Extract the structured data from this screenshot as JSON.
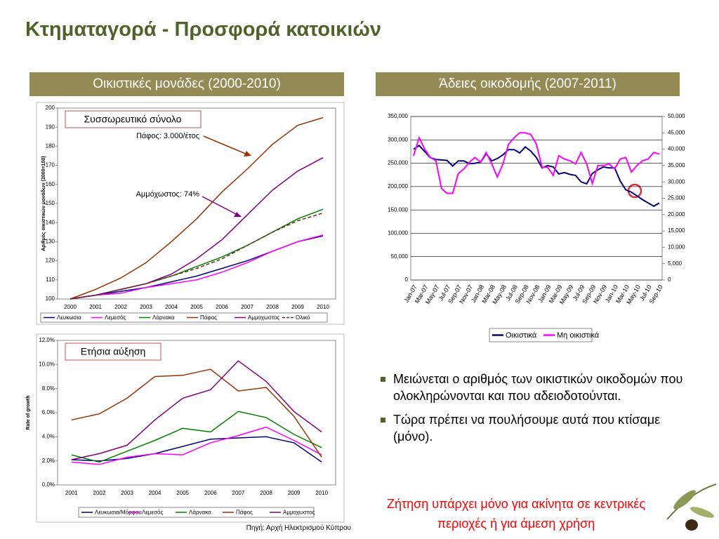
{
  "title": "Κτηματαγορά - Προσφορά κατοικιών",
  "left_header": "Οικιστικές μονάδες (2000-2010)",
  "right_header": "Άδειες οικοδομής (2007-2011)",
  "bullets": [
    "Μειώνεται ο αριθμός των οικιστικών οικοδομών που ολοκληρώνονται και που αδειοδοτούνται.",
    "Τώρα πρέπει να πουλήσουμε αυτά που κτίσαμε (μόνο)."
  ],
  "note": "Ζήτηση υπάρχει μόνο για ακίνητα σε κεντρικές περιοχές ή για άμεση χρήση",
  "source": "Πηγή: Αρχή Ηλεκτρισμού Κύπρου",
  "chart_data": [
    {
      "type": "line",
      "box_label": "Συσσωρευτικό σύνολο",
      "annotations": [
        "Πάφος: 3.000/έτος",
        "Αμμόχωστος: 74%"
      ],
      "y_label": "Αριθμός οικιστικών μονάδων (2000=100)",
      "categories": [
        "2000",
        "2001",
        "2002",
        "2003",
        "2004",
        "2005",
        "2006",
        "2007",
        "2008",
        "2009",
        "2010"
      ],
      "ylim": [
        100,
        200
      ],
      "yticks": [
        100,
        110,
        120,
        130,
        140,
        150,
        160,
        170,
        180,
        190,
        200
      ],
      "grid": false,
      "series": [
        {
          "name": "Λευκωσια",
          "color": "#000080",
          "values": [
            100,
            102,
            104,
            106,
            109,
            112,
            116,
            120,
            125,
            130,
            133
          ]
        },
        {
          "name": "Λεμεσός",
          "color": "#ff00ff",
          "values": [
            100,
            102,
            103,
            106,
            108,
            110,
            114,
            119,
            125,
            130,
            133.5
          ]
        },
        {
          "name": "Λάρνακα",
          "color": "#008000",
          "values": [
            100,
            102,
            105,
            108,
            112,
            117,
            122,
            128,
            135,
            142,
            147
          ]
        },
        {
          "name": "Πάφος",
          "color": "#993300",
          "values": [
            100,
            105,
            111,
            119,
            130,
            142,
            156,
            168,
            181,
            191,
            195
          ]
        },
        {
          "name": "Αμμοχωστος",
          "color": "#800080",
          "values": [
            100,
            102,
            105,
            108,
            113,
            121,
            131,
            144,
            157,
            167,
            174
          ]
        },
        {
          "name": "Ολικό",
          "color": "#6b2d1a",
          "dash": true,
          "values": [
            100,
            102,
            105,
            108,
            112,
            116,
            121,
            128,
            135,
            141,
            145
          ]
        }
      ]
    },
    {
      "type": "line",
      "categories": [
        "Jan-07",
        null,
        "Mar-07",
        null,
        "May-07",
        null,
        "Jul-07",
        null,
        "Sep-07",
        null,
        "Nov-07",
        null,
        "Jan-08",
        null,
        "Mar-08",
        null,
        "May-08",
        null,
        "Jul-08",
        null,
        "Sep-08",
        null,
        "Nov-08",
        null,
        "Jan-09",
        null,
        "Mar-09",
        null,
        "May-09",
        null,
        "Jul-09",
        null,
        "Sep-09",
        null,
        "Nov-09",
        null,
        "Jan-10",
        null,
        "Mar-10",
        null,
        "May-10",
        null,
        "Jul-10",
        null,
        "Sep-10"
      ],
      "ylim": [
        0,
        350000
      ],
      "yticks": [
        0,
        {
          "value": 50000,
          "label": "50,000"
        },
        {
          "value": 100000,
          "label": "100,000"
        },
        {
          "value": 150000,
          "label": "150,000"
        },
        {
          "value": 200000,
          "label": "200,000"
        },
        {
          "value": 250000,
          "label": "250,000"
        },
        {
          "value": 300000,
          "label": "300,000"
        },
        {
          "value": 350000,
          "label": "350,000"
        }
      ],
      "y2lim": [
        0,
        50000
      ],
      "y2ticks": [
        0,
        {
          "value": 5000,
          "label": "5,000"
        },
        {
          "value": 10000,
          "label": "10,000"
        },
        {
          "value": 15000,
          "label": "15,000"
        },
        {
          "value": 20000,
          "label": "20,000"
        },
        {
          "value": 25000,
          "label": "25,000"
        },
        {
          "value": 30000,
          "label": "30,000"
        },
        {
          "value": 35000,
          "label": "35,000"
        },
        {
          "value": 40000,
          "label": "40,000"
        },
        {
          "value": 45000,
          "label": "45,000"
        },
        {
          "value": 50000,
          "label": "50,000"
        }
      ],
      "grid": true,
      "series": [
        {
          "name": "Οικιστικά",
          "color": "#000080",
          "values": [
            280000,
            288000,
            275000,
            262000,
            258000,
            257000,
            256000,
            244000,
            255000,
            255000,
            249000,
            250000,
            252000,
            270000,
            255000,
            260000,
            268000,
            279000,
            279000,
            272000,
            285000,
            276000,
            262000,
            240000,
            245000,
            242000,
            227000,
            230000,
            226000,
            224000,
            210000,
            206000,
            228000,
            236000,
            242000,
            240000,
            240000,
            212000,
            193000,
            188000,
            180000,
            172000,
            165000,
            158000,
            165000
          ]
        },
        {
          "name": "Μη οικιστικά",
          "color": "#ff00ff",
          "axis": "y2",
          "values": [
            38000,
            43500,
            40000,
            37500,
            36500,
            28000,
            26500,
            26500,
            32500,
            34000,
            36000,
            37500,
            36000,
            39000,
            35500,
            31500,
            35500,
            41500,
            43500,
            45000,
            45000,
            44500,
            41500,
            34500,
            34500,
            32000,
            38000,
            37000,
            36500,
            35500,
            39000,
            35500,
            29500,
            35000,
            35000,
            35500,
            34000,
            37000,
            37500,
            33000,
            35000,
            36500,
            37000,
            39000,
            38500
          ]
        }
      ]
    },
    {
      "type": "line",
      "box_label": "Ετήσια αύξηση",
      "y_label": "Rate of growth",
      "categories": [
        "2001",
        "2002",
        "2003",
        "2004",
        "2005",
        "2006",
        "2007",
        "2008",
        "2009",
        "2010"
      ],
      "ylim": [
        0,
        12
      ],
      "yticks": [
        {
          "value": 0,
          "label": "0.0%"
        },
        {
          "value": 2,
          "label": "2.0%"
        },
        {
          "value": 4,
          "label": "4.0%"
        },
        {
          "value": 6,
          "label": "6.0%"
        },
        {
          "value": 8,
          "label": "8.0%"
        },
        {
          "value": 10,
          "label": "10.0%"
        },
        {
          "value": 12,
          "label": "12.0%"
        }
      ],
      "grid": false,
      "series": [
        {
          "name": "Λευκωσια/Μόρφου",
          "color": "#000080",
          "values": [
            2.1,
            2.0,
            2.2,
            2.6,
            3.2,
            3.8,
            3.9,
            4.0,
            3.5,
            1.9
          ]
        },
        {
          "name": "Λεμεσός",
          "color": "#ff00ff",
          "values": [
            1.9,
            1.7,
            2.3,
            2.6,
            2.5,
            3.5,
            4.1,
            4.8,
            3.7,
            2.5
          ]
        },
        {
          "name": "Λάρνακα",
          "color": "#008000",
          "values": [
            2.5,
            1.9,
            2.8,
            3.7,
            4.7,
            4.4,
            6.1,
            5.6,
            4.2,
            3.1
          ]
        },
        {
          "name": "Πάφος",
          "color": "#993300",
          "values": [
            5.4,
            5.9,
            7.2,
            9.0,
            9.1,
            9.6,
            7.8,
            8.1,
            5.7,
            2.3
          ]
        },
        {
          "name": "Αμμοχωστος",
          "color": "#800080",
          "values": [
            2.1,
            2.6,
            3.3,
            5.4,
            7.2,
            7.9,
            10.3,
            8.6,
            6.1,
            4.4
          ]
        }
      ]
    }
  ]
}
